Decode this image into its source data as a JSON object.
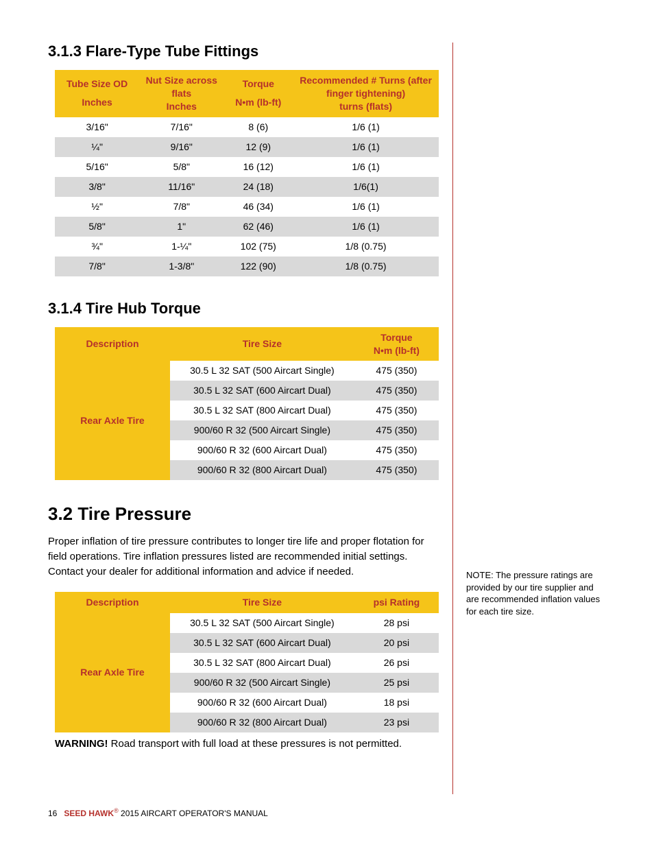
{
  "colors": {
    "accent_red": "#b5302b",
    "header_yellow": "#f5c419",
    "row_alt_grey": "#d9d9d9",
    "background": "#ffffff",
    "text": "#000000"
  },
  "typography": {
    "body_font": "Arial, Helvetica, sans-serif",
    "h1_size_pt": 20,
    "h2_size_pt": 17,
    "body_size_pt": 11,
    "table_size_pt": 10.5,
    "footer_size_pt": 9
  },
  "section_313": {
    "heading": "3.1.3 Flare-Type Tube Fittings",
    "table": {
      "type": "table",
      "columns": [
        {
          "line1": "Tube Size OD",
          "line2": "Inches",
          "width_pct": 22
        },
        {
          "line1": "Nut Size across flats",
          "line2": "Inches",
          "width_pct": 22
        },
        {
          "line1": "Torque",
          "line2": "N•m (lb-ft)",
          "width_pct": 18
        },
        {
          "line1": "Recommended # Turns (after finger tightening)",
          "line2": "turns (flats)",
          "width_pct": 38
        }
      ],
      "rows": [
        [
          "3/16\"",
          "7/16\"",
          "8 (6)",
          "1/6 (1)"
        ],
        [
          "¼\"",
          "9/16\"",
          "12 (9)",
          "1/6 (1)"
        ],
        [
          "5/16\"",
          "5/8\"",
          "16 (12)",
          "1/6 (1)"
        ],
        [
          "3/8\"",
          "11/16\"",
          "24 (18)",
          "1/6(1)"
        ],
        [
          "½\"",
          "7/8\"",
          "46 (34)",
          "1/6 (1)"
        ],
        [
          "5/8\"",
          "1\"",
          "62 (46)",
          "1/6 (1)"
        ],
        [
          "¾\"",
          "1-¼\"",
          "102 (75)",
          "1/8 (0.75)"
        ],
        [
          "7/8\"",
          "1-3/8\"",
          "122 (90)",
          "1/8 (0.75)"
        ]
      ]
    }
  },
  "section_314": {
    "heading": "3.1.4  Tire Hub Torque",
    "table": {
      "type": "table",
      "columns": [
        {
          "line1": "Description",
          "width_pct": 30
        },
        {
          "line1": "Tire Size",
          "width_pct": 48
        },
        {
          "line1": "Torque",
          "line2": "N•m (lb-ft)",
          "width_pct": 22
        }
      ],
      "row_header": "Rear Axle Tire",
      "rows": [
        [
          "30.5 L 32 SAT (500 Aircart Single)",
          "475 (350)"
        ],
        [
          "30.5 L 32 SAT (600 Aircart Dual)",
          "475 (350)"
        ],
        [
          "30.5 L 32 SAT (800 Aircart Dual)",
          "475 (350)"
        ],
        [
          "900/60 R 32 (500 Aircart Single)",
          "475 (350)"
        ],
        [
          "900/60 R 32 (600 Aircart Dual)",
          "475 (350)"
        ],
        [
          "900/60 R 32 (800 Aircart Dual)",
          "475 (350)"
        ]
      ]
    }
  },
  "section_32": {
    "heading": "3.2 Tire Pressure",
    "body": "Proper inflation of tire pressure contributes to longer tire life and proper flotation for field operations. Tire inflation pressures listed are recommended initial settings. Contact your dealer for additional information and advice if needed.",
    "table": {
      "type": "table",
      "columns": [
        {
          "line1": "Description",
          "width_pct": 30
        },
        {
          "line1": "Tire Size",
          "width_pct": 48
        },
        {
          "line1": "psi Rating",
          "width_pct": 22
        }
      ],
      "row_header": "Rear Axle Tire",
      "rows": [
        [
          "30.5 L 32 SAT (500 Aircart Single)",
          "28 psi"
        ],
        [
          "30.5 L 32 SAT (600 Aircart Dual)",
          "20 psi"
        ],
        [
          "30.5 L 32 SAT (800 Aircart Dual)",
          "26 psi"
        ],
        [
          "900/60 R 32 (500 Aircart Single)",
          "25 psi"
        ],
        [
          "900/60 R 32 (600 Aircart Dual)",
          "18 psi"
        ],
        [
          "900/60 R 32 (800 Aircart Dual)",
          "23 psi"
        ]
      ]
    },
    "warning_label": "WARNING!",
    "warning_text": " Road transport with full load at these pressures is not permitted."
  },
  "side_note": "NOTE: The pressure ratings are provided by our tire supplier and are recommended inflation values for each tire size.",
  "footer": {
    "page_number": "16",
    "brand": "SEED HAWK",
    "reg": "®",
    "title": " 2015 AIRCART OPERATOR'S MANUAL"
  }
}
